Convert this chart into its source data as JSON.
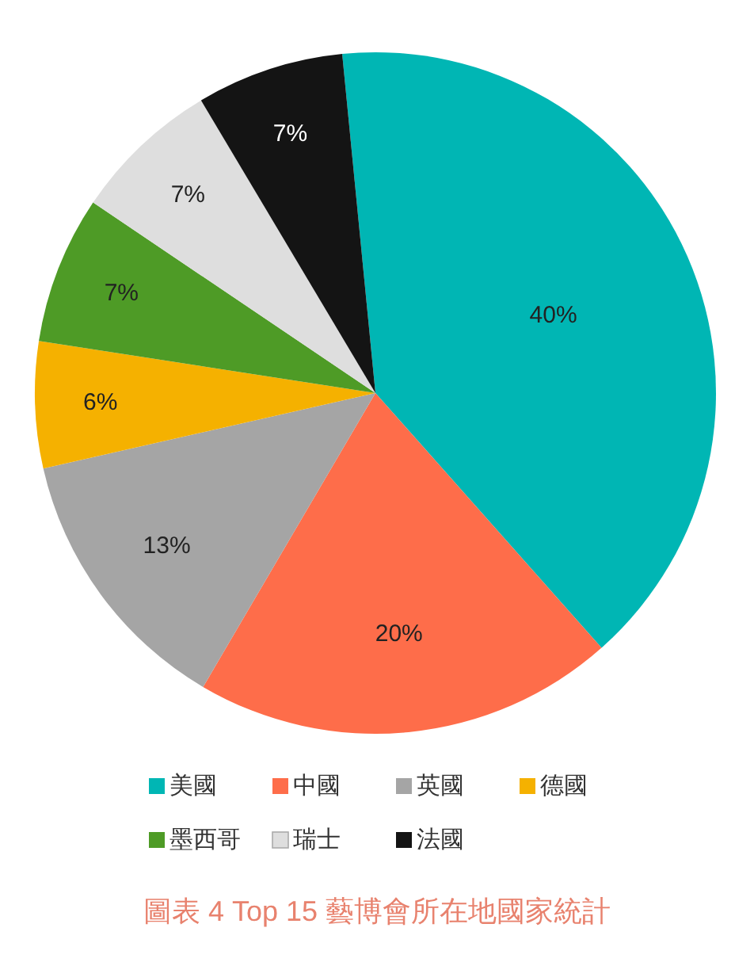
{
  "chart_data": {
    "type": "pie",
    "categories": [
      "美國",
      "中國",
      "英國",
      "德國",
      "墨西哥",
      "瑞士",
      "法國"
    ],
    "values": [
      40,
      20,
      13,
      6,
      7,
      7,
      7
    ],
    "colors": [
      "#00b6b4",
      "#fe6d4a",
      "#a5a5a5",
      "#f5b100",
      "#4e9b26",
      "#dedede",
      "#141414"
    ],
    "value_labels": [
      "40%",
      "20%",
      "13%",
      "6%",
      "7%",
      "7%",
      "7%"
    ],
    "legend": "bottom",
    "annotations": [
      "圖表 4 Top 15 藝博會所在地國家統計"
    ]
  }
}
